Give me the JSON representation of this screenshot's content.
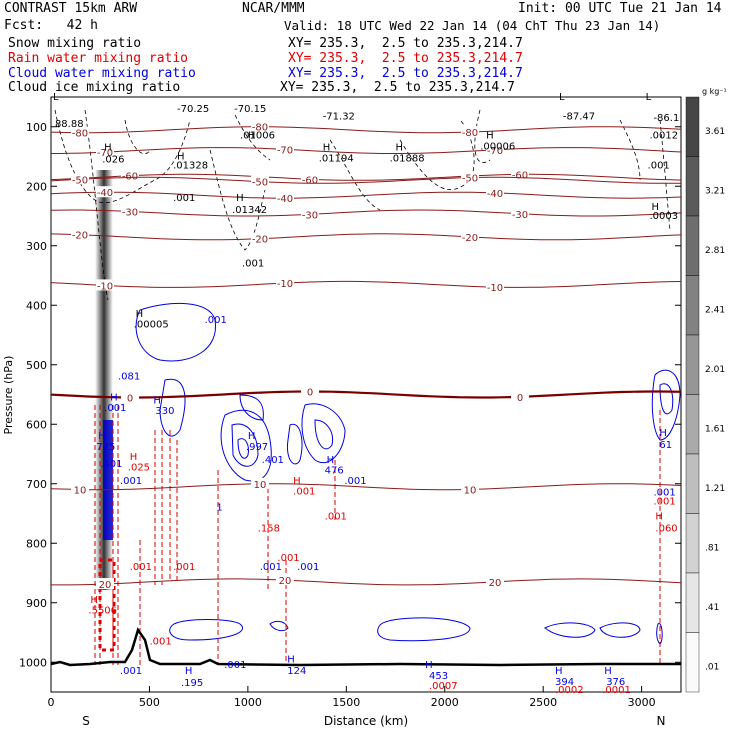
{
  "header": {
    "left1": "CONTRAST 15km ARW",
    "center1": "NCAR/MMM",
    "right1": "Init: 00 UTC Tue 21 Jan 14",
    "left2": "Fcst:   42 h",
    "right2": "Valid: 18 UTC Wed 22 Jan 14 (04 ChT Thu 23 Jan 14)",
    "fields": [
      {
        "label": "Snow mixing ratio",
        "xy": "XY= 235.3,  2.5 to 235.3,214.7",
        "color": "#000000"
      },
      {
        "label": "Rain water mixing ratio",
        "xy": "XY= 235.3,  2.5 to 235.3,214.7",
        "color": "#e00000"
      },
      {
        "label": "Cloud water mixing ratio",
        "xy": "XY= 235.3,  2.5 to 235.3,214.7",
        "color": "#0000e0"
      },
      {
        "label": "Cloud ice mixing ratio",
        "xy": "XY= 235.3,  2.5 to 235.3,214.7",
        "color": "#000000"
      }
    ]
  },
  "chart_data": {
    "type": "cross-section",
    "xlabel": "Distance (km)",
    "ylabel": "Pressure (hPa)",
    "xlim": [
      0,
      3200
    ],
    "ylim": [
      1050,
      50
    ],
    "x_ticks": [
      0,
      500,
      1000,
      1500,
      2000,
      2500,
      3000
    ],
    "y_ticks": [
      100,
      200,
      300,
      400,
      500,
      600,
      700,
      800,
      900,
      1000
    ],
    "x_end_labels": {
      "left": "S",
      "right": "N"
    },
    "colorbar": {
      "unit": "g kg⁻¹",
      "labels": [
        "3.61",
        "3.21",
        "2.81",
        "2.41",
        "2.01",
        "1.61",
        "1.21",
        ".81",
        ".41",
        ".01"
      ]
    },
    "temperature_contours": [
      {
        "p": 105,
        "label": "-80"
      },
      {
        "p": 140,
        "label": "-70"
      },
      {
        "p": 185,
        "label": "-60"
      },
      {
        "p": 190,
        "label": "-50"
      },
      {
        "p": 215,
        "label": "-40"
      },
      {
        "p": 245,
        "label": "-30"
      },
      {
        "p": 285,
        "label": "-20"
      },
      {
        "p": 365,
        "label": "-10"
      },
      {
        "p": 550,
        "label": "0"
      },
      {
        "p": 705,
        "label": "10"
      },
      {
        "p": 865,
        "label": "20"
      }
    ],
    "annotations": [
      {
        "x": 10,
        "p": 55,
        "text": "L",
        "color": "#000000"
      },
      {
        "x": 20,
        "p": 100,
        "text": "88.88",
        "color": "#000000"
      },
      {
        "x": 640,
        "p": 75,
        "text": "-70.25",
        "color": "#000000"
      },
      {
        "x": 930,
        "p": 75,
        "text": "-70.15",
        "color": "#000000"
      },
      {
        "x": 1380,
        "p": 88,
        "text": "-71.32",
        "color": "#000000"
      },
      {
        "x": 2600,
        "p": 88,
        "text": "-87.47",
        "color": "#000000"
      },
      {
        "x": 3060,
        "p": 90,
        "text": "-86.1",
        "color": "#000000"
      },
      {
        "x": 2580,
        "p": 55,
        "text": "L",
        "color": "#000000"
      },
      {
        "x": 3020,
        "p": 55,
        "text": "L",
        "color": "#000000"
      },
      {
        "x": 270,
        "p": 140,
        "text": "H",
        "color": "#000000"
      },
      {
        "x": 260,
        "p": 160,
        "text": ".026",
        "color": "#000000"
      },
      {
        "x": 640,
        "p": 155,
        "text": "H",
        "color": "#000000"
      },
      {
        "x": 620,
        "p": 170,
        "text": ".01328",
        "color": "#000000"
      },
      {
        "x": 1000,
        "p": 120,
        "text": "H",
        "color": "#000000"
      },
      {
        "x": 960,
        "p": 120,
        "text": ".01006",
        "color": "#000000"
      },
      {
        "x": 1380,
        "p": 140,
        "text": "H",
        "color": "#000000"
      },
      {
        "x": 1360,
        "p": 158,
        "text": ".01194",
        "color": "#000000"
      },
      {
        "x": 1750,
        "p": 140,
        "text": "H",
        "color": "#000000"
      },
      {
        "x": 1720,
        "p": 158,
        "text": ".01888",
        "color": "#000000"
      },
      {
        "x": 2210,
        "p": 120,
        "text": "H",
        "color": "#000000"
      },
      {
        "x": 2180,
        "p": 138,
        "text": ".00006",
        "color": "#000000"
      },
      {
        "x": 3040,
        "p": 120,
        "text": ".0012",
        "color": "#000000"
      },
      {
        "x": 3030,
        "p": 170,
        "text": ".001",
        "color": "#000000"
      },
      {
        "x": 620,
        "p": 225,
        "text": ".001",
        "color": "#000000"
      },
      {
        "x": 940,
        "p": 225,
        "text": "H",
        "color": "#000000"
      },
      {
        "x": 920,
        "p": 245,
        "text": ".01342",
        "color": "#000000"
      },
      {
        "x": 970,
        "p": 335,
        "text": ".001",
        "color": "#000000"
      },
      {
        "x": 3050,
        "p": 240,
        "text": "H",
        "color": "#000000"
      },
      {
        "x": 3040,
        "p": 255,
        "text": ".0003",
        "color": "#000000"
      },
      {
        "x": 430,
        "p": 420,
        "text": "H",
        "color": "#000000"
      },
      {
        "x": 420,
        "p": 437,
        "text": ".00005",
        "color": "#000000"
      },
      {
        "x": 780,
        "p": 430,
        "text": ".001",
        "color": "#0000e0"
      },
      {
        "x": 340,
        "p": 525,
        "text": ".081",
        "color": "#0000e0"
      },
      {
        "x": 300,
        "p": 560,
        "text": "H",
        "color": "#0000e0"
      },
      {
        "x": 270,
        "p": 578,
        "text": ".001",
        "color": "#0000e0"
      },
      {
        "x": 520,
        "p": 565,
        "text": "H",
        "color": "#0000e0"
      },
      {
        "x": 530,
        "p": 583,
        "text": "330",
        "color": "#0000e0"
      },
      {
        "x": 1000,
        "p": 625,
        "text": "H",
        "color": "#0000e0"
      },
      {
        "x": 990,
        "p": 643,
        "text": ".997",
        "color": "#0000e0"
      },
      {
        "x": 1070,
        "p": 665,
        "text": ".401",
        "color": "#0000e0"
      },
      {
        "x": 1400,
        "p": 665,
        "text": "H",
        "color": "#0000e0"
      },
      {
        "x": 1390,
        "p": 683,
        "text": "476",
        "color": "#0000e0"
      },
      {
        "x": 240,
        "p": 625,
        "text": "H",
        "color": "#0000e0"
      },
      {
        "x": 230,
        "p": 643,
        "text": "725",
        "color": "#0000e0"
      },
      {
        "x": 250,
        "p": 672,
        "text": ".401",
        "color": "#0000e0"
      },
      {
        "x": 350,
        "p": 700,
        "text": ".001",
        "color": "#0000e0"
      },
      {
        "x": 400,
        "p": 660,
        "text": "H",
        "color": "#e00000"
      },
      {
        "x": 390,
        "p": 678,
        "text": ".025",
        "color": "#e00000"
      },
      {
        "x": 1230,
        "p": 700,
        "text": "H",
        "color": "#e00000"
      },
      {
        "x": 1230,
        "p": 718,
        "text": ".001",
        "color": "#e00000"
      },
      {
        "x": 1490,
        "p": 700,
        "text": ".001",
        "color": "#0000e0"
      },
      {
        "x": 1390,
        "p": 760,
        "text": ".001",
        "color": "#e00000"
      },
      {
        "x": 840,
        "p": 745,
        "text": "1",
        "color": "#0000e0"
      },
      {
        "x": 1050,
        "p": 780,
        "text": ".158",
        "color": "#e00000"
      },
      {
        "x": 1150,
        "p": 830,
        "text": ".001",
        "color": "#e00000"
      },
      {
        "x": 1060,
        "p": 845,
        "text": ".001",
        "color": "#0000e0"
      },
      {
        "x": 1250,
        "p": 845,
        "text": ".001",
        "color": "#0000e0"
      },
      {
        "x": 400,
        "p": 845,
        "text": ".001",
        "color": "#e00000"
      },
      {
        "x": 620,
        "p": 845,
        "text": ".001",
        "color": "#e00000"
      },
      {
        "x": 200,
        "p": 900,
        "text": "H",
        "color": "#e00000"
      },
      {
        "x": 190,
        "p": 918,
        "text": ".5506",
        "color": "#e00000"
      },
      {
        "x": 500,
        "p": 970,
        "text": ".001",
        "color": "#e00000"
      },
      {
        "x": 350,
        "p": 1020,
        "text": ".001",
        "color": "#0000e0"
      },
      {
        "x": 680,
        "p": 1020,
        "text": "H",
        "color": "#0000e0"
      },
      {
        "x": 660,
        "p": 1040,
        "text": ".195",
        "color": "#0000e0"
      },
      {
        "x": 880,
        "p": 1010,
        "text": ".001",
        "color": "#0000e0"
      },
      {
        "x": 1200,
        "p": 1000,
        "text": "H",
        "color": "#0000e0"
      },
      {
        "x": 1200,
        "p": 1020,
        "text": "124",
        "color": "#0000e0"
      },
      {
        "x": 1900,
        "p": 1010,
        "text": "H",
        "color": "#0000e0"
      },
      {
        "x": 1920,
        "p": 1028,
        "text": "453",
        "color": "#0000e0"
      },
      {
        "x": 1920,
        "p": 1045,
        "text": ".0007",
        "color": "#e00000"
      },
      {
        "x": 2560,
        "p": 1020,
        "text": "H",
        "color": "#0000e0"
      },
      {
        "x": 2560,
        "p": 1038,
        "text": "394",
        "color": "#0000e0"
      },
      {
        "x": 2560,
        "p": 1052,
        "text": ".0002",
        "color": "#e00000"
      },
      {
        "x": 2810,
        "p": 1020,
        "text": "H",
        "color": "#0000e0"
      },
      {
        "x": 2820,
        "p": 1038,
        "text": "376",
        "color": "#0000e0"
      },
      {
        "x": 2800,
        "p": 1052,
        "text": ".0001",
        "color": "#e00000"
      },
      {
        "x": 3060,
        "p": 720,
        "text": ".001",
        "color": "#0000e0"
      },
      {
        "x": 3090,
        "p": 620,
        "text": "H",
        "color": "#0000e0"
      },
      {
        "x": 3090,
        "p": 640,
        "text": "61",
        "color": "#0000e0"
      },
      {
        "x": 3060,
        "p": 735,
        "text": ".001",
        "color": "#e00000"
      },
      {
        "x": 3070,
        "p": 760,
        "text": "H",
        "color": "#e00000"
      },
      {
        "x": 3070,
        "p": 780,
        "text": ".060",
        "color": "#e00000"
      }
    ]
  }
}
